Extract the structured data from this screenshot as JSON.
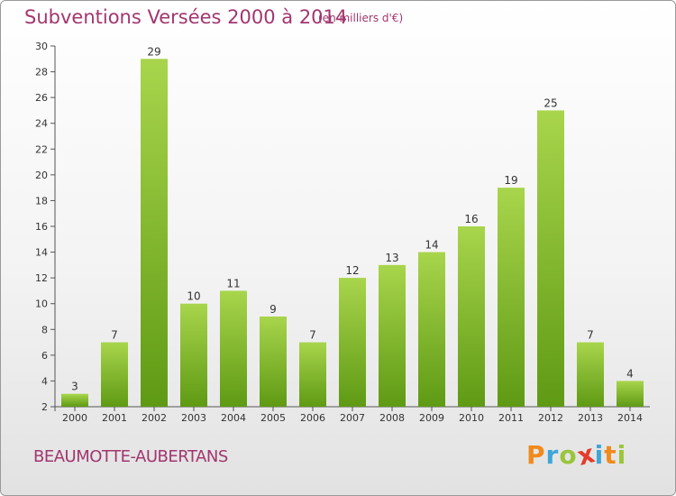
{
  "title": "Subventions Versées 2000 à 2014",
  "subtitle": "(en milliers d'€)",
  "commune": "BEAUMOTTE-AUBERTANS",
  "logo": {
    "letters": [
      "P",
      "r",
      "o",
      "x",
      "i",
      "t",
      "i"
    ],
    "colors": [
      "#f08a1c",
      "#3ea6d8",
      "#9ac53c",
      "#e53b2c",
      "#3ea6d8",
      "#f08a1c",
      "#9ac53c"
    ]
  },
  "colors": {
    "bar_light": "#a8d54c",
    "bar_dark": "#5f9a14",
    "text": "#a2366f"
  },
  "chart_data": {
    "type": "bar",
    "categories": [
      "2000",
      "2001",
      "2002",
      "2003",
      "2004",
      "2005",
      "2006",
      "2007",
      "2008",
      "2009",
      "2010",
      "2011",
      "2012",
      "2013",
      "2014"
    ],
    "values": [
      3,
      7,
      29,
      10,
      11,
      9,
      7,
      12,
      13,
      14,
      16,
      19,
      25,
      7,
      4
    ],
    "data_labels": [
      "3",
      "7",
      "29",
      "10",
      "11",
      "9",
      "7",
      "12",
      "13",
      "14",
      "16",
      "19",
      "25",
      "7",
      "4"
    ],
    "title": "Subventions Versées 2000 à 2014",
    "xlabel": "",
    "ylabel": "",
    "ylim": [
      2,
      30
    ],
    "yticks": [
      2,
      4,
      6,
      8,
      10,
      12,
      14,
      16,
      18,
      20,
      22,
      24,
      26,
      28,
      30
    ],
    "grid": false,
    "legend": "none"
  }
}
